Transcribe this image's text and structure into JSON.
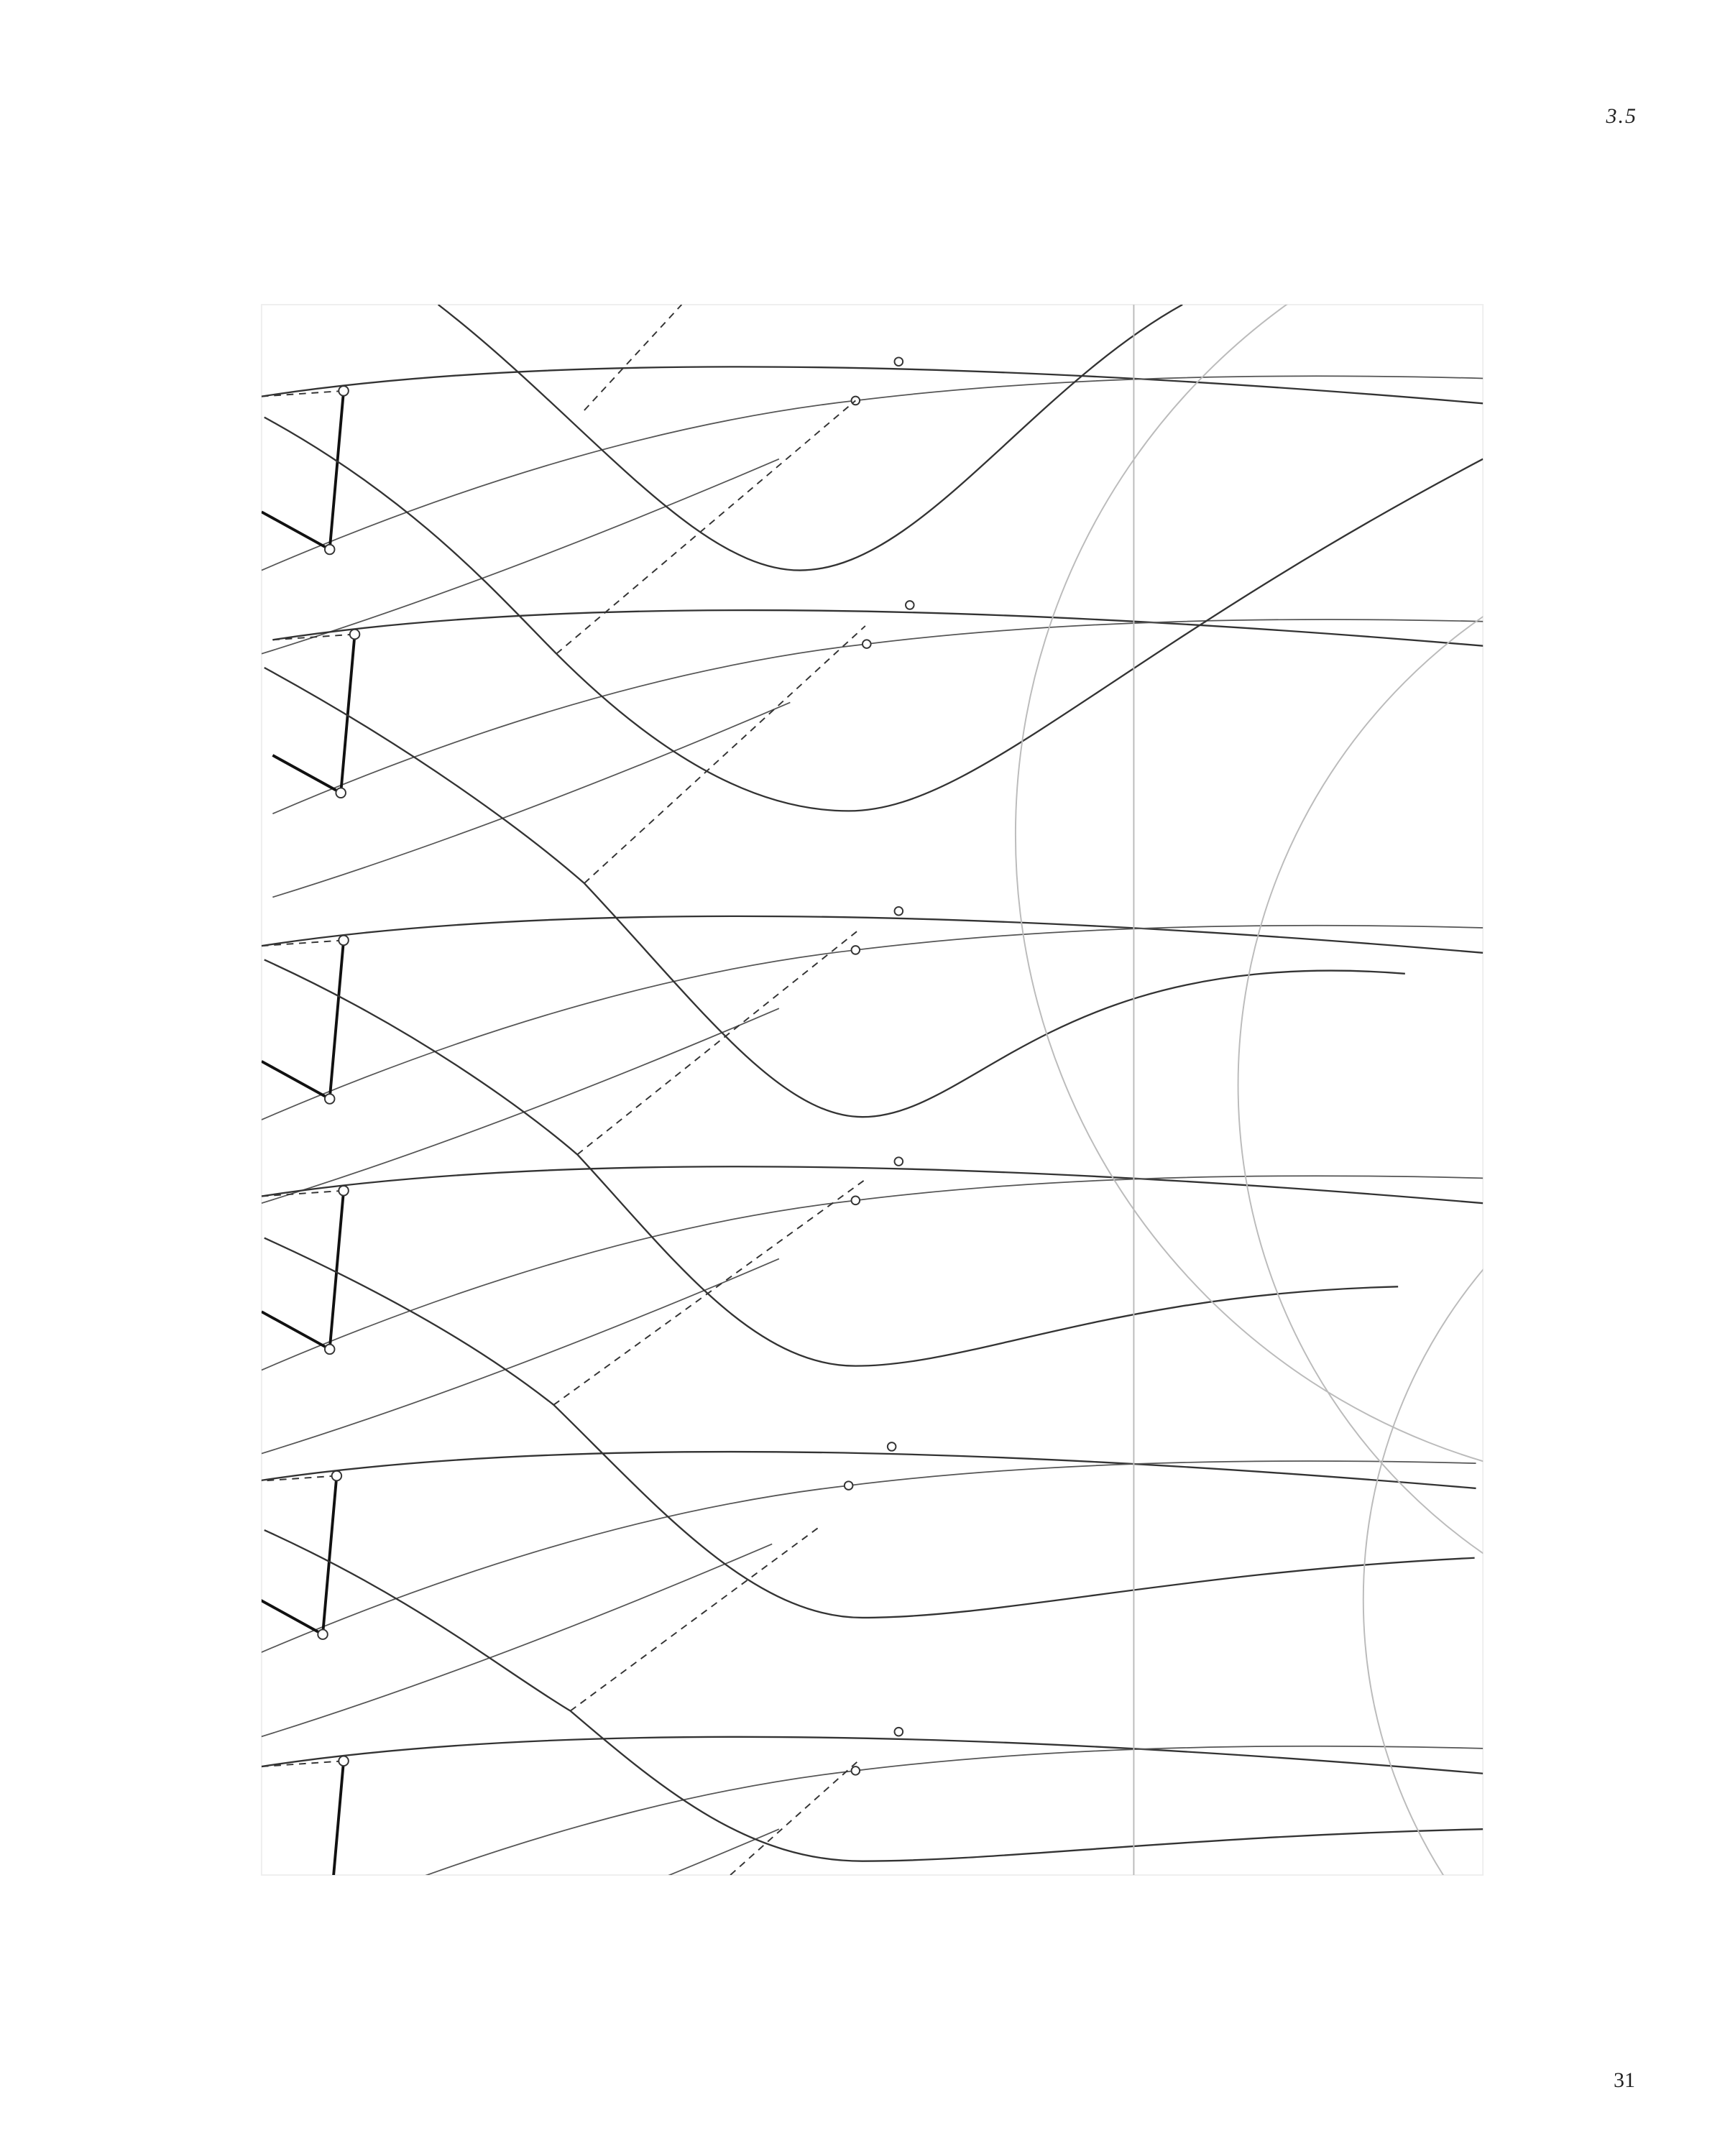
{
  "header": {
    "section": "3.5"
  },
  "footer": {
    "page_number": "31"
  }
}
